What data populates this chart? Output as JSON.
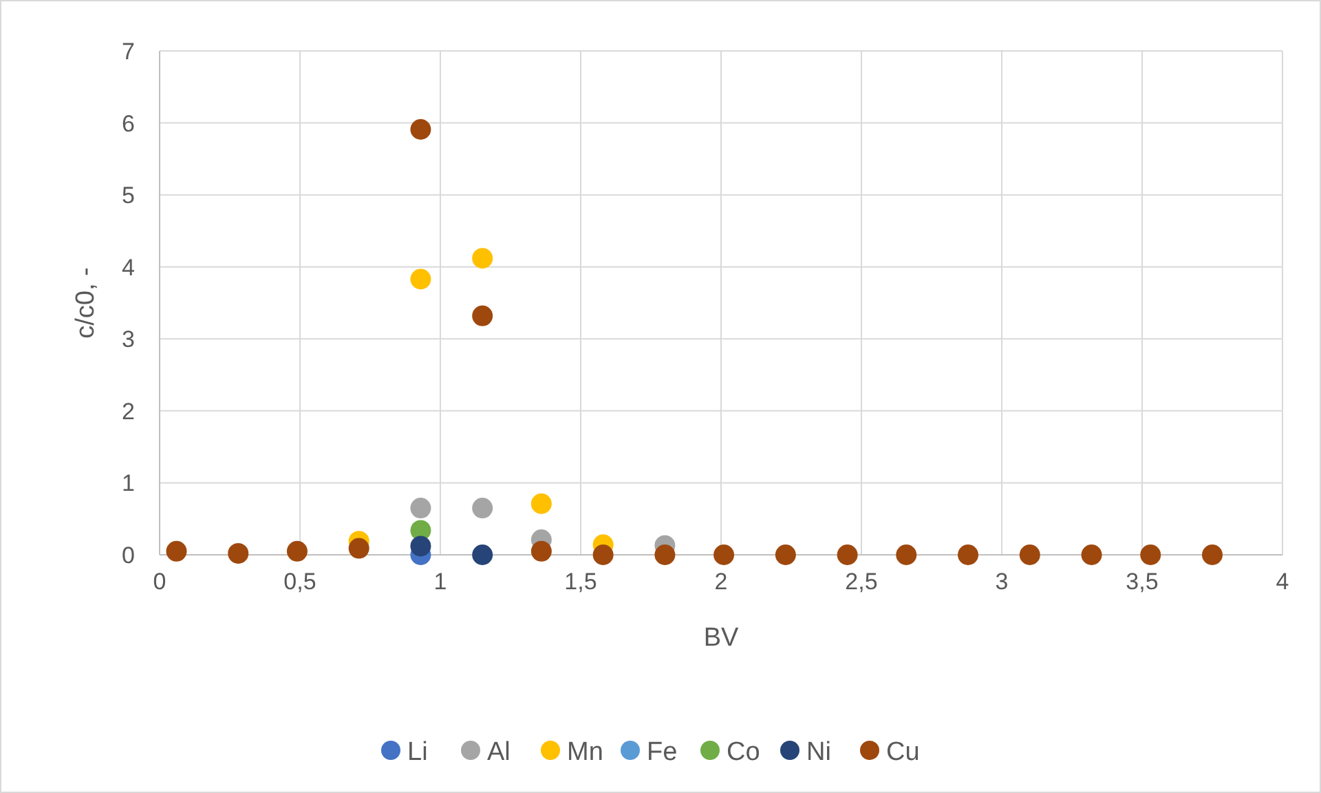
{
  "chart_data": {
    "type": "scatter",
    "xlabel": "BV",
    "ylabel": "c/c0, -",
    "x": [
      0.06,
      0.28,
      0.49,
      0.71,
      0.93,
      1.15,
      1.36,
      1.58,
      1.8,
      2.01,
      2.23,
      2.45,
      2.66,
      2.88,
      3.1,
      3.32,
      3.53,
      3.75
    ],
    "series": [
      {
        "name": "Li",
        "color": "#4472c4",
        "values": [
          null,
          null,
          null,
          null,
          0.0,
          null,
          null,
          null,
          null,
          null,
          null,
          null,
          null,
          null,
          null,
          null,
          null,
          null
        ]
      },
      {
        "name": "Al",
        "color": "#a5a5a5",
        "values": [
          null,
          null,
          null,
          null,
          0.65,
          0.65,
          0.21,
          null,
          0.13,
          null,
          null,
          null,
          null,
          null,
          null,
          null,
          null,
          null
        ]
      },
      {
        "name": "Mn",
        "color": "#ffc000",
        "values": [
          null,
          null,
          null,
          0.19,
          3.83,
          4.12,
          0.71,
          0.14,
          null,
          null,
          null,
          null,
          null,
          null,
          null,
          null,
          null,
          null
        ]
      },
      {
        "name": "Fe",
        "color": "#5b9bd5",
        "values": [
          null,
          null,
          null,
          null,
          null,
          null,
          null,
          null,
          null,
          null,
          null,
          null,
          null,
          null,
          null,
          null,
          null,
          null
        ]
      },
      {
        "name": "Co",
        "color": "#70ad47",
        "values": [
          null,
          null,
          null,
          null,
          0.34,
          null,
          null,
          null,
          null,
          null,
          null,
          null,
          null,
          null,
          null,
          null,
          null,
          null
        ]
      },
      {
        "name": "Ni",
        "color": "#264478",
        "values": [
          null,
          null,
          null,
          null,
          0.12,
          0.0,
          null,
          null,
          null,
          null,
          null,
          null,
          null,
          null,
          null,
          null,
          null,
          null
        ]
      },
      {
        "name": "Cu",
        "color": "#9e480e",
        "values": [
          0.05,
          0.02,
          0.05,
          0.09,
          5.91,
          3.32,
          0.05,
          0.0,
          0.0,
          0.0,
          0.0,
          0.0,
          0.0,
          0.0,
          0.0,
          0.0,
          0.0,
          0.0
        ]
      }
    ],
    "xlim": [
      0,
      4
    ],
    "xticks": [
      0,
      {
        "value": 0.5,
        "label": "0,5"
      },
      1,
      {
        "value": 1.5,
        "label": "1,5"
      },
      2,
      {
        "value": 2.5,
        "label": "2,5"
      },
      3,
      {
        "value": 3.5,
        "label": "3,5"
      },
      4
    ],
    "ylim": [
      0,
      7
    ],
    "yticks": [
      0,
      1,
      2,
      3,
      4,
      5,
      6,
      7
    ],
    "grid": true,
    "legend": "bottom",
    "marker": "circle"
  }
}
